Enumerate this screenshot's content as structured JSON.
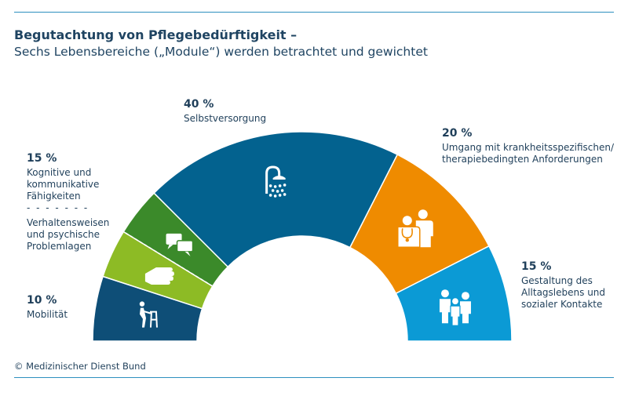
{
  "title": "Begutachtung von Pflegebedürftigkeit –",
  "subtitle": "Sechs Lebensbereiche („Module“) werden betrachtet und gewichtet",
  "credit": "© Medizinischer Dienst Bund",
  "colors": {
    "mobilitaet": "#0e4e77",
    "kognitiv": "#8dbb25",
    "verhalten": "#3b8a2a",
    "selbstversorgung": "#03628f",
    "umgang": "#ef8b00",
    "alltag": "#0b9ad5",
    "text": "#1f3f5a"
  },
  "chart_data": {
    "type": "pie",
    "variant": "half-donut",
    "title": "Begutachtung von Pflegebedürftigkeit –",
    "subtitle": "Sechs Lebensbereiche („Module“) werden betrachtet und gewichtet",
    "unit": "%",
    "slices": [
      {
        "key": "mobilitaet",
        "value": 10,
        "pct_label": "10 %",
        "lines": [
          "Mobilität"
        ],
        "icon": "walker-icon"
      },
      {
        "key": "kognitiv_verhalten",
        "value": 15,
        "pct_label": "15 %",
        "lines": [
          "Kognitive und",
          "kommunikative",
          "Fähigkeiten"
        ],
        "separator": "- - - - - - -",
        "lines2": [
          "Verhaltensweisen",
          "und psychische",
          "Problemlagen"
        ],
        "sub_icons": [
          "hand-icon",
          "speech-bubbles-icon"
        ]
      },
      {
        "key": "selbstversorgung",
        "value": 40,
        "pct_label": "40 %",
        "lines": [
          "Selbstversorgung"
        ],
        "icon": "shower-icon"
      },
      {
        "key": "umgang",
        "value": 20,
        "pct_label": "20 %",
        "lines": [
          "Umgang mit krankheitsspezifischen/",
          "therapiebedingten Anforderungen"
        ],
        "icon": "doctor-patient-icon"
      },
      {
        "key": "alltag",
        "value": 15,
        "pct_label": "15 %",
        "lines": [
          "Gestaltung des",
          "Alltagslebens und",
          "sozialer Kontakte"
        ],
        "icon": "group-icon"
      }
    ]
  }
}
